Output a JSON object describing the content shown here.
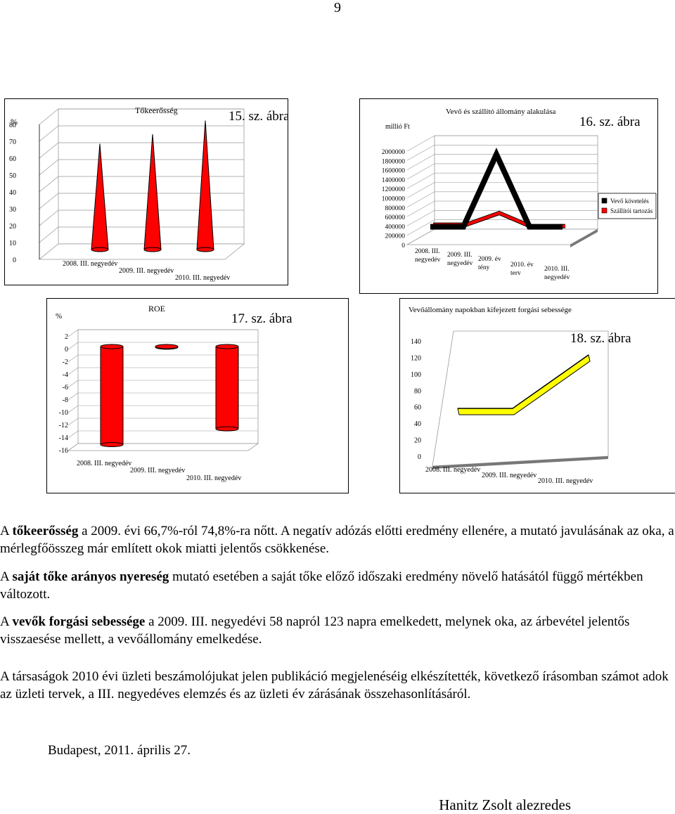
{
  "page_number": "9",
  "chart_data": [
    {
      "type": "bar",
      "bar_shape": "cone",
      "fig_label": "15. sz. ábra",
      "title": "Tőkeerősség",
      "ylabel": "%",
      "yticks": [
        "80",
        "70",
        "60",
        "50",
        "40",
        "30",
        "20",
        "10",
        "0"
      ],
      "ylim": [
        0,
        80
      ],
      "categories": [
        "2008. III. negyedév",
        "2009. III. negyedév",
        "2010. III. negyedév"
      ],
      "values": [
        61,
        66.7,
        74.8
      ],
      "color": "#ff0000"
    },
    {
      "type": "line",
      "line_style": "3d-ribbon",
      "fig_label": "16. sz. ábra",
      "title": "Vevő és szállító állomány alakulása",
      "ylabel": "millió Ft",
      "yticks": [
        "2000000",
        "1800000",
        "1600000",
        "1400000",
        "1200000",
        "1000000",
        "800000",
        "600000",
        "400000",
        "200000",
        "0"
      ],
      "ylim": [
        0,
        2000000
      ],
      "categories": [
        "2008. III. negyedév",
        "2009. III. negyedév",
        "2009. év tény",
        "2010. év terv",
        "2010. III. negyedév"
      ],
      "series": [
        {
          "name": "Vevő követelés",
          "values": [
            50000,
            50000,
            1600000,
            50000,
            50000
          ],
          "color": "#000000"
        },
        {
          "name": "Szállítói tartozás",
          "values": [
            50000,
            50000,
            300000,
            0,
            20000
          ],
          "color": "#ff0000"
        }
      ]
    },
    {
      "type": "bar",
      "bar_shape": "cylinder",
      "fig_label": "17. sz. ábra",
      "title": "ROE",
      "ylabel": "%",
      "yticks": [
        "2",
        "0",
        "-2",
        "-4",
        "-6",
        "-8",
        "-10",
        "-12",
        "-14",
        "-16"
      ],
      "ylim": [
        -16,
        2
      ],
      "categories": [
        "2008. III. negyedév",
        "2009. III. negyedév",
        "2010. III. negyedév"
      ],
      "values": [
        -15.5,
        -0.1,
        -13
      ],
      "color": "#ff0000"
    },
    {
      "type": "line",
      "line_style": "3d-ribbon",
      "fig_label": "18. sz. ábra",
      "title": "Vevőállomány napokban kifejezett forgási sebessége",
      "yticks": [
        "140",
        "120",
        "100",
        "80",
        "60",
        "40",
        "20",
        "0"
      ],
      "ylim": [
        0,
        140
      ],
      "categories": [
        "2008. III. negyedév",
        "2009. III. negyedév",
        "2010. III. negyedév"
      ],
      "values": [
        58,
        58,
        123
      ],
      "color": "#ffff00"
    }
  ],
  "paragraphs": [
    [
      {
        "t": "A "
      },
      {
        "t": "tőkeerősség",
        "b": true
      },
      {
        "t": " a 2009. évi 66,7%-ról 74,8%-ra nőtt. A negatív adózás előtti eredmény ellenére, a mutató javulásának az oka, a mérlegfőösszeg már említett okok miatti jelentős csökkenése."
      }
    ],
    [
      {
        "t": "A "
      },
      {
        "t": "saját tőke arányos nyereség",
        "b": true
      },
      {
        "t": " mutató esetében a saját tőke előző időszaki eredmény növelő hatásától függő mértékben változott."
      }
    ],
    [
      {
        "t": "A "
      },
      {
        "t": "vevők forgási sebessége",
        "b": true
      },
      {
        "t": " a 2009. III. negyedévi 58 napról 123 napra emelkedett, melynek oka, az árbevétel jelentős visszaesése mellett, a vevőállomány emelkedése."
      }
    ],
    [
      {
        "t": "A társaságok 2010 évi üzleti beszámolójukat jelen publikáció megjelenéséig elkészítették, következő írásomban számot adok az üzleti tervek, a III. negyedéves elemzés és az üzleti év zárásának összehasonlításáról."
      }
    ]
  ],
  "date_line": "Budapest, 2011. április 27.",
  "signature": "Hanitz Zsolt alezredes"
}
